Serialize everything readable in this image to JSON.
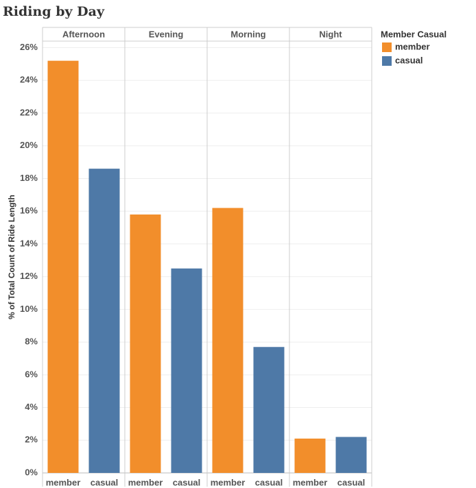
{
  "chart_data": {
    "type": "bar",
    "title": "Riding by Day",
    "y_label": "% of Total Count of Ride Length",
    "legend_title": "Member Casual",
    "categories": [
      "Afternoon",
      "Evening",
      "Morning",
      "Night"
    ],
    "series": [
      {
        "name": "member",
        "color": "#f28e2b",
        "values": [
          25.2,
          15.8,
          16.2,
          2.1
        ]
      },
      {
        "name": "casual",
        "color": "#4e79a7",
        "values": [
          18.6,
          12.5,
          7.7,
          2.2
        ]
      }
    ],
    "ylim": [
      0,
      26.4
    ],
    "yticks": [
      {
        "value": 0,
        "label": "0%"
      },
      {
        "value": 2,
        "label": "2%"
      },
      {
        "value": 4,
        "label": "4%"
      },
      {
        "value": 6,
        "label": "6%"
      },
      {
        "value": 8,
        "label": "8%"
      },
      {
        "value": 10,
        "label": "10%"
      },
      {
        "value": 12,
        "label": "12%"
      },
      {
        "value": 14,
        "label": "14%"
      },
      {
        "value": 16,
        "label": "16%"
      },
      {
        "value": 18,
        "label": "18%"
      },
      {
        "value": 20,
        "label": "20%"
      },
      {
        "value": 22,
        "label": "22%"
      },
      {
        "value": 24,
        "label": "24%"
      },
      {
        "value": 26,
        "label": "26%"
      }
    ],
    "grid": true,
    "legend": "right"
  }
}
